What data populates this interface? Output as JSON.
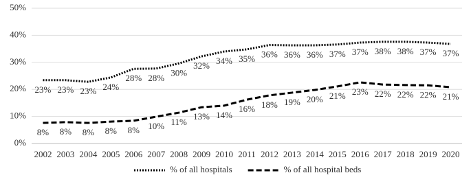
{
  "chart_data": {
    "type": "line",
    "categories": [
      "2002",
      "2003",
      "2004",
      "2005",
      "2006",
      "2007",
      "2008",
      "2009",
      "2010",
      "2011",
      "2012",
      "2013",
      "2014",
      "2015",
      "2016",
      "2017",
      "2018",
      "2019",
      "2020"
    ],
    "series": [
      {
        "name": "% of all hospitals",
        "color": "#000000",
        "dash": "dotted",
        "values": [
          23.4,
          23.4,
          22.8,
          24.4,
          27.6,
          27.7,
          29.6,
          32.2,
          34.0,
          34.8,
          36.4,
          36.3,
          36.3,
          36.6,
          37.3,
          37.6,
          37.6,
          37.3,
          36.8
        ],
        "value_labels": [
          "23%",
          "23%",
          "23%",
          "24%",
          "28%",
          "28%",
          "30%",
          "32%",
          "34%",
          "35%",
          "36%",
          "36%",
          "36%",
          "37%",
          "37%",
          "38%",
          "38%",
          "37%",
          "37%"
        ]
      },
      {
        "name": "% of all hospital beds",
        "color": "#000000",
        "dash": "dashed",
        "values": [
          7.6,
          7.9,
          7.6,
          8.1,
          8.4,
          9.9,
          11.4,
          13.4,
          14.0,
          16.2,
          17.8,
          18.8,
          19.8,
          21.1,
          22.6,
          21.8,
          21.6,
          21.5,
          20.8
        ],
        "value_labels": [
          "8%",
          "8%",
          "8%",
          "8%",
          "8%",
          "10%",
          "11%",
          "13%",
          "14%",
          "16%",
          "18%",
          "19%",
          "20%",
          "21%",
          "23%",
          "22%",
          "22%",
          "22%",
          "21%"
        ]
      }
    ],
    "ylim": [
      0,
      50
    ],
    "yticks": [
      {
        "value": 0,
        "label": "0%"
      },
      {
        "value": 10,
        "label": "10%"
      },
      {
        "value": 20,
        "label": "20%"
      },
      {
        "value": 30,
        "label": "30%"
      },
      {
        "value": 40,
        "label": "40%"
      },
      {
        "value": 50,
        "label": "50%"
      }
    ],
    "grid": true,
    "legend": "bottom"
  }
}
